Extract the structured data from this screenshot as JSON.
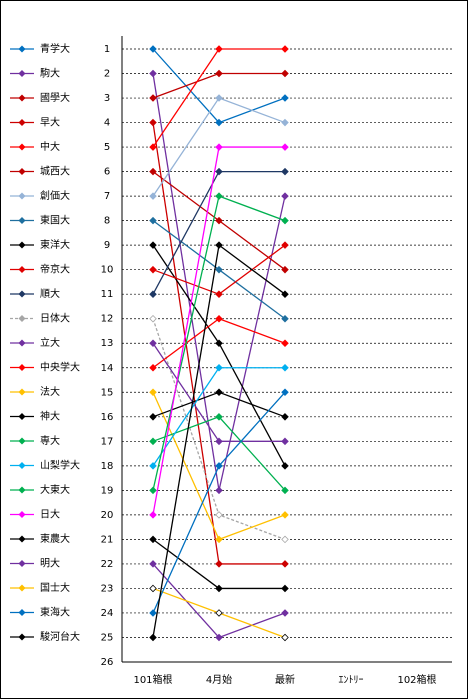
{
  "chart_data": {
    "type": "line",
    "categories": [
      "101箱根",
      "4月始",
      "最新",
      "ｴﾝﾄﾘｰ",
      "102箱根"
    ],
    "ylim": [
      1,
      26
    ],
    "yticks": [
      1,
      2,
      3,
      4,
      5,
      6,
      7,
      8,
      9,
      10,
      11,
      12,
      13,
      14,
      15,
      16,
      17,
      18,
      19,
      20,
      21,
      22,
      23,
      24,
      25,
      26
    ],
    "inverted": true,
    "grid": true,
    "legend": "left",
    "series": [
      {
        "name": "青学大",
        "color": "#0070c0",
        "values": [
          1,
          4,
          3,
          null,
          null
        ]
      },
      {
        "name": "駒大",
        "color": "#7030a0",
        "values": [
          2,
          19,
          7,
          null,
          null
        ]
      },
      {
        "name": "國學大",
        "color": "#c00000",
        "values": [
          3,
          2,
          2,
          null,
          null
        ]
      },
      {
        "name": "早大",
        "color": "#cc0000",
        "values": [
          4,
          22,
          22,
          null,
          null
        ]
      },
      {
        "name": "中大",
        "color": "#ff0000",
        "values": [
          5,
          1,
          1,
          null,
          null
        ]
      },
      {
        "name": "城西大",
        "color": "#c00000",
        "values": [
          6,
          8,
          10,
          null,
          null
        ]
      },
      {
        "name": "創価大",
        "color": "#95b3d7",
        "values": [
          7,
          3,
          4,
          null,
          null
        ]
      },
      {
        "name": "東国大",
        "color": "#1f6f9f",
        "values": [
          8,
          10,
          12,
          null,
          null
        ]
      },
      {
        "name": "東洋大",
        "color": "#000000",
        "values": [
          9,
          13,
          18,
          null,
          null
        ]
      },
      {
        "name": "帝京大",
        "color": "#e00000",
        "values": [
          10,
          11,
          9,
          null,
          null
        ]
      },
      {
        "name": "順大",
        "color": "#1f3864",
        "values": [
          11,
          6,
          6,
          null,
          null
        ]
      },
      {
        "name": "日体大",
        "color": "#a6a6a6",
        "values": [
          12,
          20,
          21,
          null,
          null
        ]
      },
      {
        "name": "立大",
        "color": "#7030a0",
        "values": [
          13,
          17,
          17,
          null,
          null
        ]
      },
      {
        "name": "中央学大",
        "color": "#ff0000",
        "values": [
          14,
          12,
          13,
          null,
          null
        ]
      },
      {
        "name": "法大",
        "color": "#ffc000",
        "values": [
          15,
          21,
          20,
          null,
          null
        ]
      },
      {
        "name": "神大",
        "color": "#000000",
        "values": [
          16,
          15,
          16,
          null,
          null
        ]
      },
      {
        "name": "専大",
        "color": "#00b050",
        "values": [
          17,
          16,
          19,
          null,
          null
        ]
      },
      {
        "name": "山梨学大",
        "color": "#00b0f0",
        "values": [
          18,
          14,
          14,
          null,
          null
        ]
      },
      {
        "name": "大東大",
        "color": "#00b050",
        "values": [
          19,
          7,
          8,
          null,
          null
        ]
      },
      {
        "name": "日大",
        "color": "#ff00ff",
        "values": [
          20,
          5,
          5,
          null,
          null
        ]
      },
      {
        "name": "東農大",
        "color": "#000000",
        "values": [
          21,
          23,
          23,
          null,
          null
        ]
      },
      {
        "name": "明大",
        "color": "#7030a0",
        "values": [
          22,
          25,
          24,
          null,
          null
        ]
      },
      {
        "name": "国士大",
        "color": "#ffc000",
        "values": [
          23,
          24,
          25,
          null,
          null
        ]
      },
      {
        "name": "東海大",
        "color": "#0070c0",
        "values": [
          24,
          18,
          15,
          null,
          null
        ]
      },
      {
        "name": "駿河台大",
        "color": "#000000",
        "values": [
          25,
          9,
          11,
          null,
          null
        ]
      }
    ]
  }
}
